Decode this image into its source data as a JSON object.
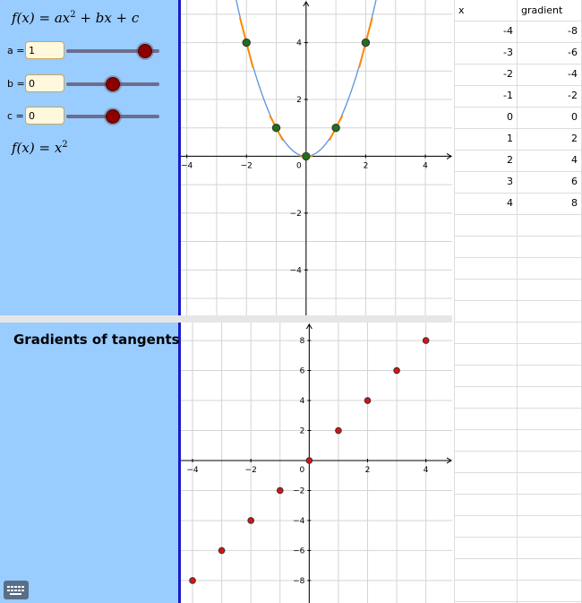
{
  "formula_top": {
    "lhs": "f(x) = ax",
    "exp": "2",
    "rhs": " + bx + c"
  },
  "sliders": [
    {
      "label": "a =",
      "value": "1",
      "pos": 0.85
    },
    {
      "label": "b =",
      "value": "0",
      "pos": 0.5
    },
    {
      "label": "c =",
      "value": "0",
      "pos": 0.5
    }
  ],
  "formula_current": {
    "lhs": "f(x) = x",
    "exp": "2"
  },
  "bottom_heading": "Gradients of tangents",
  "keyboard_icon": "keyboard-icon",
  "table": {
    "headers": [
      "x",
      "gradient"
    ],
    "rows": [
      [
        "-4",
        "-8"
      ],
      [
        "-3",
        "-6"
      ],
      [
        "-2",
        "-4"
      ],
      [
        "-1",
        "-2"
      ],
      [
        "0",
        "0"
      ],
      [
        "1",
        "2"
      ],
      [
        "2",
        "4"
      ],
      [
        "3",
        "6"
      ],
      [
        "4",
        "8"
      ]
    ]
  },
  "chart_data": [
    {
      "type": "line",
      "title": "",
      "xlabel": "",
      "ylabel": "",
      "xlim": [
        -4.2,
        4.9
      ],
      "ylim": [
        -5.6,
        5.5
      ],
      "x_ticks": [
        "-4",
        "-2",
        "0",
        "2",
        "4"
      ],
      "y_ticks": [
        "4",
        "2",
        "-2",
        "-4"
      ],
      "series": [
        {
          "function": "x^2",
          "color": "#6699dd"
        }
      ],
      "tangent_points": {
        "x": [
          -2,
          -1,
          0,
          1,
          2
        ],
        "y": [
          4,
          1,
          0,
          1,
          4
        ],
        "point_color": "#1f6f1f",
        "tangent_color": "#ff8800"
      },
      "grid": true
    },
    {
      "type": "scatter",
      "title": "",
      "xlabel": "",
      "ylabel": "",
      "xlim": [
        -4.4,
        4.9
      ],
      "ylim": [
        -9.5,
        9.2
      ],
      "x_ticks": [
        "-4",
        "-2",
        "0",
        "2",
        "4"
      ],
      "y_ticks": [
        "8",
        "6",
        "4",
        "2",
        "-2",
        "-4",
        "-6",
        "-8"
      ],
      "x": [
        -4,
        -3,
        -2,
        -1,
        0,
        1,
        2,
        3,
        4
      ],
      "y": [
        -8,
        -6,
        -4,
        -2,
        0,
        2,
        4,
        6,
        8
      ],
      "point_color": "#dd1111",
      "grid": true
    }
  ],
  "colors": {
    "panel": "#99ccff",
    "axis_border": "#1a1acc",
    "input_bg": "#fff8dd",
    "slider_knob": "#8b0000"
  }
}
